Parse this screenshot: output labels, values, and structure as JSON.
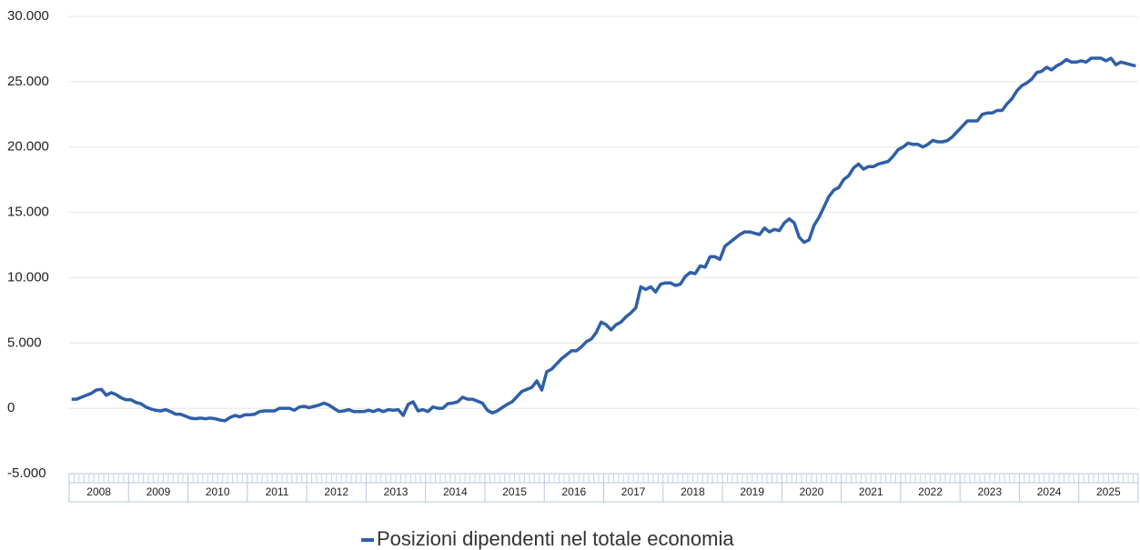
{
  "chart_data": {
    "type": "line",
    "categories": [
      "2008",
      "2009",
      "2010",
      "2011",
      "2012",
      "2013",
      "2014",
      "2015",
      "2016",
      "2017",
      "2018",
      "2019",
      "2020",
      "2021",
      "2022",
      "2023",
      "2024",
      "2025"
    ],
    "series": [
      {
        "name": "Posizioni dipendenti nel totale economia",
        "color": "#2f5fa7",
        "values": [
          [
            700,
            700,
            850,
            1000,
            1150,
            1400,
            1450,
            1000,
            1200,
            1050,
            800,
            650
          ],
          [
            650,
            450,
            350,
            100,
            -50,
            -150,
            -200,
            -100,
            -250,
            -450,
            -450,
            -600
          ],
          [
            -750,
            -800,
            -750,
            -800,
            -750,
            -800,
            -900,
            -950,
            -700,
            -550,
            -650,
            -500
          ],
          [
            -500,
            -450,
            -250,
            -200,
            -200,
            -200,
            0,
            0,
            0,
            -150,
            100,
            150
          ],
          [
            50,
            150,
            250,
            400,
            250,
            0,
            -250,
            -200,
            -100,
            -250,
            -250,
            -250
          ],
          [
            -150,
            -250,
            -100,
            -250,
            -100,
            -150,
            -100,
            -550,
            300,
            500,
            -200,
            -100
          ],
          [
            -250,
            100,
            0,
            0,
            350,
            400,
            500,
            850,
            700,
            700,
            550,
            400
          ],
          [
            -150,
            -350,
            -200,
            50,
            300,
            500,
            900,
            1300,
            1450,
            1600,
            2100,
            1400
          ],
          [
            2800,
            3000,
            3400,
            3800,
            4100,
            4400,
            4400,
            4700,
            5100,
            5300,
            5800,
            6600
          ],
          [
            6400,
            6000,
            6400,
            6600,
            7000,
            7300,
            7700,
            9300,
            9100,
            9300,
            8900,
            9500
          ],
          [
            9600,
            9600,
            9400,
            9500,
            10100,
            10400,
            10300,
            10900,
            10800,
            11600,
            11600,
            11400
          ],
          [
            12400,
            12700,
            13000,
            13300,
            13500,
            13500,
            13400,
            13300,
            13800,
            13500,
            13700,
            13600
          ],
          [
            14200,
            14500,
            14200,
            13100,
            12700,
            12900,
            14000,
            14600,
            15400,
            16200,
            16700,
            16900
          ],
          [
            17500,
            17800,
            18400,
            18700,
            18300,
            18500,
            18500,
            18700,
            18800,
            18900,
            19300,
            19800
          ],
          [
            20000,
            20300,
            20200,
            20200,
            20000,
            20200,
            20500,
            20400,
            20400,
            20500,
            20800,
            21200
          ],
          [
            21600,
            22000,
            22000,
            22000,
            22500,
            22600,
            22600,
            22800,
            22800,
            23300,
            23700,
            24300
          ],
          [
            24700,
            24900,
            25200,
            25700,
            25800,
            26100,
            25900,
            26200,
            26400,
            26700,
            26500,
            26500
          ],
          [
            26600,
            26500,
            26800,
            26800,
            26800,
            26600,
            26800,
            26300,
            26500,
            26400,
            26300,
            26200
          ]
        ]
      }
    ],
    "ylim": [
      -5000,
      30000
    ],
    "yticks": [
      {
        "value": -5000,
        "label": "-5.000"
      },
      0,
      {
        "value": 5000,
        "label": "5.000"
      },
      {
        "value": 10000,
        "label": "10.000"
      },
      {
        "value": 15000,
        "label": "15.000"
      },
      {
        "value": 20000,
        "label": "20.000"
      },
      {
        "value": 25000,
        "label": "25.000"
      },
      {
        "value": 30000,
        "label": "30.000"
      }
    ],
    "grid": true
  }
}
